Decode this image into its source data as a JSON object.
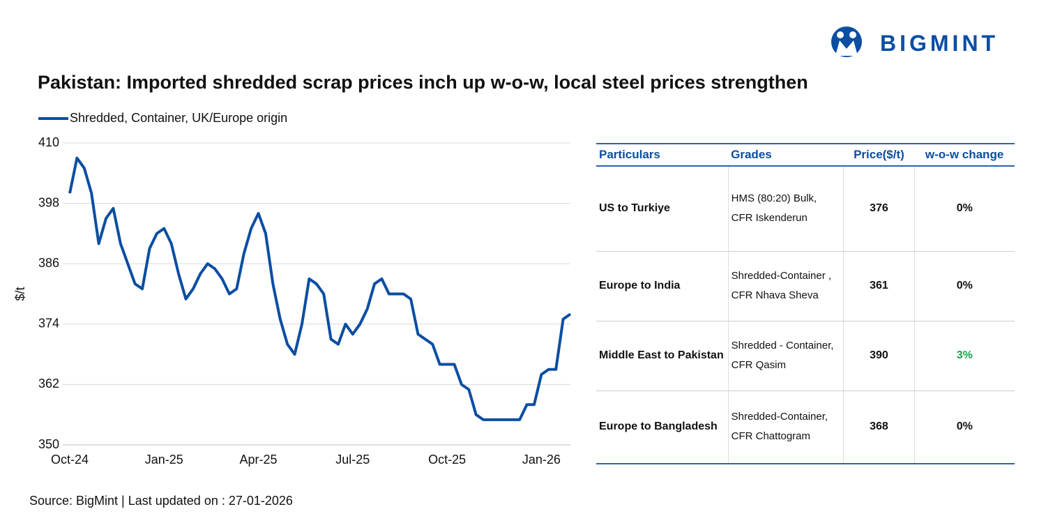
{
  "header": {
    "brand": "BIGMINT",
    "title": "Pakistan: Imported shredded scrap prices inch up w-o-w, local steel prices strengthen"
  },
  "chart_data": {
    "type": "line",
    "y_label": "$/t",
    "categories": [
      "Oct-24",
      null,
      null,
      null,
      null,
      null,
      null,
      null,
      null,
      null,
      null,
      null,
      null,
      "Jan-25",
      null,
      null,
      null,
      null,
      null,
      null,
      null,
      null,
      null,
      null,
      null,
      null,
      "Apr-25",
      null,
      null,
      null,
      null,
      null,
      null,
      null,
      null,
      null,
      null,
      null,
      null,
      "Jul-25",
      null,
      null,
      null,
      null,
      null,
      null,
      null,
      null,
      null,
      null,
      null,
      null,
      "Oct-25",
      null,
      null,
      null,
      null,
      null,
      null,
      null,
      null,
      null,
      null,
      null,
      null,
      "Jan-26",
      null,
      null,
      null,
      null
    ],
    "series": [
      {
        "name": "Shredded, Container, UK/Europe origin",
        "color": "#0b4ea2",
        "values": [
          400,
          407,
          405,
          400,
          390,
          395,
          397,
          390,
          386,
          382,
          381,
          389,
          392,
          393,
          390,
          384,
          379,
          381,
          384,
          386,
          385,
          383,
          380,
          381,
          388,
          393,
          396,
          392,
          382,
          375,
          370,
          368,
          374,
          383,
          382,
          380,
          371,
          370,
          374,
          372,
          374,
          377,
          382,
          383,
          380,
          380,
          380,
          379,
          372,
          371,
          370,
          366,
          366,
          366,
          362,
          361,
          356,
          355,
          355,
          355,
          355,
          355,
          355,
          358,
          358,
          364,
          365,
          365,
          375,
          376
        ]
      }
    ],
    "ylim": [
      350,
      410
    ],
    "yticks": [
      350,
      362,
      374,
      386,
      398,
      410
    ],
    "grid": true
  },
  "table": {
    "columns": [
      "Particulars",
      "Grades",
      "Price($/t)",
      "w-o-w change"
    ],
    "rows": [
      [
        "US to Turkiye",
        "HMS (80:20) Bulk,\nCFR Iskenderun",
        "376",
        "0%"
      ],
      [
        "Europe to India",
        "Shredded-Container ,\nCFR Nhava Sheva",
        "361",
        "0%"
      ],
      [
        "Middle East to Pakistan",
        "Shredded - Container,\nCFR Qasim",
        "390",
        "3%"
      ],
      [
        "Europe to Bangladesh",
        "Shredded-Container,\nCFR Chattogram",
        "368",
        "0%"
      ]
    ]
  },
  "footer": {
    "source": "Source: BigMint | Last updated on : 27-01-2026"
  }
}
